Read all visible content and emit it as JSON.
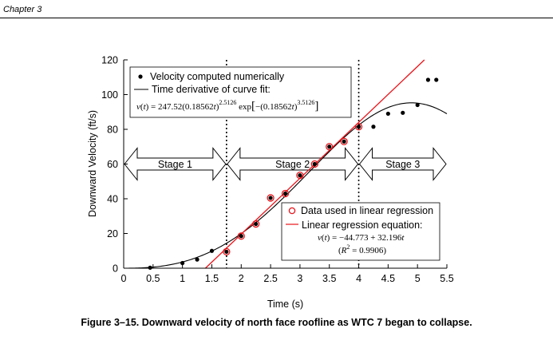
{
  "header": {
    "chapter": "Chapter 3"
  },
  "caption": "Figure 3–15.  Downward velocity of north face roofline as WTC 7 began to collapse.",
  "chart_data": {
    "type": "scatter",
    "xlabel": "Time (s)",
    "ylabel": "Downward Velocity (ft/s)",
    "xlim": [
      0,
      5.5
    ],
    "ylim": [
      0,
      120
    ],
    "xticks": [
      "0",
      "0.5",
      "1",
      "1.5",
      "2",
      "2.5",
      "3",
      "3.5",
      "4",
      "4.5",
      "5",
      "5.5"
    ],
    "yticks": [
      "0",
      "20",
      "40",
      "60",
      "80",
      "100",
      "120"
    ],
    "grid": false,
    "legend_upper": {
      "points_label": "Velocity computed numerically",
      "line_label": "Time derivative of curve fit:",
      "equation": "v(t) = 247.52(0.18562t)^2.5126 exp[−(0.18562t)^3.5126]"
    },
    "legend_lower": {
      "circles_label": "Data used in linear regression",
      "line_label": "Linear regression equation:",
      "equation": "v(t) = −44.773 + 32.196t",
      "r2": "(R² = 0.9906)"
    },
    "stages": [
      {
        "label": "Stage 1",
        "x_from": 0.0,
        "x_to": 1.75
      },
      {
        "label": "Stage 2",
        "x_from": 1.75,
        "x_to": 4.0
      },
      {
        "label": "Stage 3",
        "x_from": 4.0,
        "x_to": 5.5
      }
    ],
    "stage_boundaries": [
      1.75,
      4.0
    ],
    "curve_fit": {
      "a": 247.52,
      "b": 0.18562,
      "p": 2.5126,
      "q": 3.5126
    },
    "regression": {
      "intercept": -44.773,
      "slope": 32.196
    },
    "velocity_points": [
      {
        "x": 0.45,
        "y": 0.3
      },
      {
        "x": 1.0,
        "y": 3
      },
      {
        "x": 1.25,
        "y": 5
      },
      {
        "x": 1.5,
        "y": 10
      },
      {
        "x": 1.75,
        "y": 9.5
      },
      {
        "x": 2.0,
        "y": 18.5
      },
      {
        "x": 2.25,
        "y": 25.5
      },
      {
        "x": 2.5,
        "y": 40.5
      },
      {
        "x": 2.75,
        "y": 43
      },
      {
        "x": 3.0,
        "y": 53.5
      },
      {
        "x": 3.25,
        "y": 60
      },
      {
        "x": 3.5,
        "y": 70
      },
      {
        "x": 3.75,
        "y": 73
      },
      {
        "x": 4.0,
        "y": 81.5
      },
      {
        "x": 4.25,
        "y": 81.5
      },
      {
        "x": 4.5,
        "y": 89
      },
      {
        "x": 4.75,
        "y": 89.5
      },
      {
        "x": 5.0,
        "y": 94
      },
      {
        "x": 5.18,
        "y": 108.5
      },
      {
        "x": 5.32,
        "y": 108.5
      }
    ],
    "regression_points": [
      {
        "x": 1.75,
        "y": 9.5
      },
      {
        "x": 2.0,
        "y": 18.5
      },
      {
        "x": 2.25,
        "y": 25.5
      },
      {
        "x": 2.5,
        "y": 40.5
      },
      {
        "x": 2.75,
        "y": 43
      },
      {
        "x": 3.0,
        "y": 53.5
      },
      {
        "x": 3.25,
        "y": 60
      },
      {
        "x": 3.5,
        "y": 70
      },
      {
        "x": 3.75,
        "y": 73
      },
      {
        "x": 4.0,
        "y": 81.5
      }
    ],
    "colors": {
      "regression": "#e8141a",
      "axis": "#000000"
    }
  }
}
